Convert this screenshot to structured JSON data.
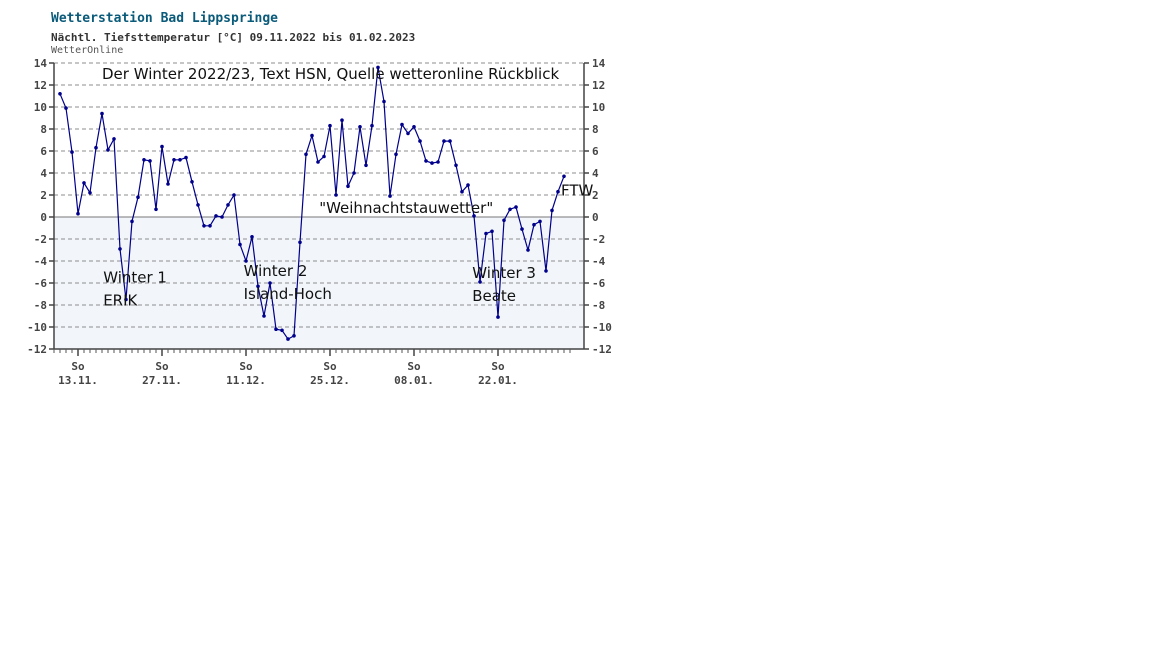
{
  "header": {
    "title": "Wetterstation Bad Lippspringe",
    "subtitle": "Nächtl. Tiefsttemperatur [°C] 09.11.2022 bis 01.02.2023",
    "source": "WetterOnline"
  },
  "chart_data": {
    "type": "line",
    "title": "Wetterstation Bad Lippspringe",
    "subtitle": "Nächtl. Tiefsttemperatur [°C] 09.11.2022 bis 01.02.2023",
    "ylim": [
      -12,
      14
    ],
    "yticks": [
      -12,
      -10,
      -8,
      -6,
      -4,
      -2,
      0,
      2,
      4,
      6,
      8,
      10,
      12,
      14
    ],
    "xlim": [
      0,
      85
    ],
    "grid": true,
    "x_week_ticks": [
      {
        "x": 4,
        "day": "So",
        "date": "13.11."
      },
      {
        "x": 18,
        "day": "So",
        "date": "27.11."
      },
      {
        "x": 32,
        "day": "So",
        "date": "11.12."
      },
      {
        "x": 46,
        "day": "So",
        "date": "25.12."
      },
      {
        "x": 60,
        "day": "So",
        "date": "08.01."
      },
      {
        "x": 74,
        "day": "So",
        "date": "22.01."
      }
    ],
    "series": [
      {
        "color": "#00008b",
        "start_date": "09.11.2022",
        "values": [
          11.2,
          9.9,
          5.9,
          0.3,
          3.1,
          2.2,
          6.3,
          9.4,
          6.1,
          7.1,
          -2.9,
          -7.5,
          -0.4,
          1.8,
          5.2,
          5.1,
          0.7,
          6.4,
          3.0,
          5.2,
          5.2,
          5.4,
          3.2,
          1.1,
          -0.8,
          -0.8,
          0.1,
          0.0,
          1.1,
          2.0,
          -2.5,
          -4.0,
          -1.8,
          -6.3,
          -9.0,
          -6.0,
          -10.2,
          -10.3,
          -11.1,
          -10.8,
          -2.3,
          5.7,
          7.4,
          5.0,
          5.5,
          8.3,
          2.0,
          8.8,
          2.8,
          4.0,
          8.2,
          4.7,
          8.3,
          13.6,
          10.5,
          1.9,
          5.7,
          8.4,
          7.6,
          8.2,
          6.9,
          5.1,
          4.9,
          5.0,
          6.9,
          6.9,
          4.7,
          2.3,
          2.9,
          0.1,
          -5.9,
          -1.5,
          -1.3,
          -9.1,
          -0.3,
          0.7,
          0.9,
          -1.1,
          -3.0,
          -0.7,
          -0.4,
          -4.9,
          0.6,
          2.3,
          3.7
        ]
      }
    ],
    "annotations": [
      {
        "text": "Der Winter 2022/23, Text HSN, Quelle wetteronline Rückblick",
        "x": 8,
        "y": 13.0
      },
      {
        "text": "Winter 1",
        "x": 8.2,
        "y": -5.5
      },
      {
        "text": "ERIK",
        "x": 8.2,
        "y": -7.6
      },
      {
        "text": "Winter 2",
        "x": 31.6,
        "y": -4.9
      },
      {
        "text": "Island-Hoch",
        "x": 31.6,
        "y": -7.0
      },
      {
        "text": "\"Weihnachtstauwetter\"",
        "x": 44.2,
        "y": 0.8
      },
      {
        "text": "Winter 3",
        "x": 69.7,
        "y": -5.1
      },
      {
        "text": "Beate",
        "x": 69.7,
        "y": -7.2
      },
      {
        "text": "FTW",
        "x": 84.5,
        "y": 2.4
      }
    ]
  }
}
